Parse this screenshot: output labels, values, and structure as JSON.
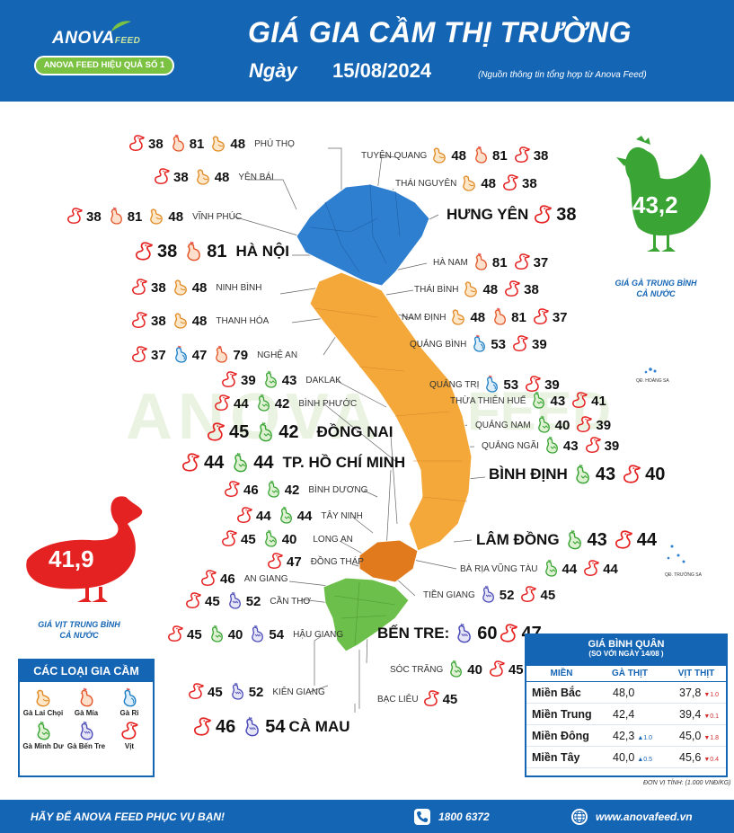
{
  "header": {
    "brand": "ANOVA",
    "brand_suffix": "FEED",
    "slogan": "ANOVA FEED HIỆU QUẢ SỐ 1",
    "title": "GIÁ GIA CẦM THỊ TRƯỜNG",
    "date_label": "Ngày",
    "date": "15/08/2024",
    "source": "(Nguồn thông tin tổng hợp từ Anova Feed)"
  },
  "colors": {
    "brand_blue": "#1565b5",
    "north": "#2f7fd1",
    "central": "#f5a83a",
    "southeast": "#e07a1c",
    "mekong": "#6cbf4a",
    "chicken_avg": "#3aa535",
    "duck_avg": "#e52222"
  },
  "provinces": [
    {
      "name": "PHÚ THỌ",
      "prices": [
        {
          "type": "vit",
          "value": "38"
        },
        {
          "type": "ga-mia",
          "value": "81"
        },
        {
          "type": "ga-lai-choi",
          "value": "48"
        }
      ]
    },
    {
      "name": "YÊN BÁI",
      "prices": [
        {
          "type": "vit",
          "value": "38"
        },
        {
          "type": "ga-lai-choi",
          "value": "48"
        }
      ]
    },
    {
      "name": "VĨNH PHÚC",
      "prices": [
        {
          "type": "vit",
          "value": "38"
        },
        {
          "type": "ga-mia",
          "value": "81"
        },
        {
          "type": "ga-lai-choi",
          "value": "48"
        }
      ]
    },
    {
      "name": "HÀ NỘI",
      "prices": [
        {
          "type": "vit",
          "value": "38"
        },
        {
          "type": "ga-mia",
          "value": "81"
        }
      ]
    },
    {
      "name": "NINH BÌNH",
      "prices": [
        {
          "type": "vit",
          "value": "38"
        },
        {
          "type": "ga-lai-choi",
          "value": "48"
        }
      ]
    },
    {
      "name": "THANH HÓA",
      "prices": [
        {
          "type": "vit",
          "value": "38"
        },
        {
          "type": "ga-lai-choi",
          "value": "48"
        }
      ]
    },
    {
      "name": "NGHỆ AN",
      "prices": [
        {
          "type": "vit",
          "value": "37"
        },
        {
          "type": "ga-ri",
          "value": "47"
        },
        {
          "type": "ga-mia",
          "value": "79"
        }
      ]
    },
    {
      "name": "DAKLAK",
      "prices": [
        {
          "type": "vit",
          "value": "39"
        },
        {
          "type": "ga-minh-du",
          "value": "43"
        }
      ]
    },
    {
      "name": "BÌNH PHƯỚC",
      "prices": [
        {
          "type": "vit",
          "value": "44"
        },
        {
          "type": "ga-minh-du",
          "value": "42"
        }
      ]
    },
    {
      "name": "ĐỒNG NAI",
      "prices": [
        {
          "type": "vit",
          "value": "45"
        },
        {
          "type": "ga-minh-du",
          "value": "42"
        }
      ]
    },
    {
      "name": "TP. HỒ CHÍ MINH",
      "prices": [
        {
          "type": "vit",
          "value": "44"
        },
        {
          "type": "ga-minh-du",
          "value": "44"
        }
      ]
    },
    {
      "name": "BÌNH DƯƠNG",
      "prices": [
        {
          "type": "vit",
          "value": "46"
        },
        {
          "type": "ga-minh-du",
          "value": "42"
        }
      ]
    },
    {
      "name": "TÂY NINH",
      "prices": [
        {
          "type": "vit",
          "value": "44"
        },
        {
          "type": "ga-minh-du",
          "value": "44"
        }
      ]
    },
    {
      "name": "LONG AN",
      "prices": [
        {
          "type": "vit",
          "value": "45"
        },
        {
          "type": "ga-minh-du",
          "value": "40"
        }
      ]
    },
    {
      "name": "ĐỒNG THÁP",
      "prices": [
        {
          "type": "vit",
          "value": "47"
        }
      ]
    },
    {
      "name": "AN GIANG",
      "prices": [
        {
          "type": "vit",
          "value": "46"
        }
      ]
    },
    {
      "name": "CẦN THƠ",
      "prices": [
        {
          "type": "vit",
          "value": "45"
        },
        {
          "type": "ga-ben-tre",
          "value": "52"
        }
      ]
    },
    {
      "name": "HẬU GIANG",
      "prices": [
        {
          "type": "vit",
          "value": "45"
        },
        {
          "type": "ga-minh-du",
          "value": "40"
        },
        {
          "type": "ga-ben-tre",
          "value": "54"
        }
      ]
    },
    {
      "name": "KIÊN GIANG",
      "prices": [
        {
          "type": "vit",
          "value": "45"
        },
        {
          "type": "ga-ben-tre",
          "value": "52"
        }
      ]
    },
    {
      "name": "CÀ MAU",
      "prices": [
        {
          "type": "vit",
          "value": "46"
        },
        {
          "type": "ga-ben-tre",
          "value": "54"
        }
      ]
    },
    {
      "name": "TUYÊN QUANG",
      "prices": [
        {
          "type": "ga-lai-choi",
          "value": "48"
        },
        {
          "type": "ga-mia",
          "value": "81"
        },
        {
          "type": "vit",
          "value": "38"
        }
      ]
    },
    {
      "name": "THÁI NGUYÊN",
      "prices": [
        {
          "type": "ga-lai-choi",
          "value": "48"
        },
        {
          "type": "vit",
          "value": "38"
        }
      ]
    },
    {
      "name": "HƯNG YÊN",
      "prices": [
        {
          "type": "vit",
          "value": "38"
        }
      ]
    },
    {
      "name": "HÀ NAM",
      "prices": [
        {
          "type": "ga-mia",
          "value": "81"
        },
        {
          "type": "vit",
          "value": "37"
        }
      ]
    },
    {
      "name": "THÁI BÌNH",
      "prices": [
        {
          "type": "ga-lai-choi",
          "value": "48"
        },
        {
          "type": "vit",
          "value": "38"
        }
      ]
    },
    {
      "name": "NAM ĐỊNH",
      "prices": [
        {
          "type": "ga-lai-choi",
          "value": "48"
        },
        {
          "type": "ga-mia",
          "value": "81"
        },
        {
          "type": "vit",
          "value": "37"
        }
      ]
    },
    {
      "name": "QUẢNG BÌNH",
      "prices": [
        {
          "type": "ga-ri",
          "value": "53"
        },
        {
          "type": "vit",
          "value": "39"
        }
      ]
    },
    {
      "name": "QUẢNG TRỊ",
      "prices": [
        {
          "type": "ga-ri",
          "value": "53"
        },
        {
          "type": "vit",
          "value": "39"
        }
      ]
    },
    {
      "name": "THỪA THIÊN HUẾ",
      "prices": [
        {
          "type": "ga-minh-du",
          "value": "43"
        },
        {
          "type": "vit",
          "value": "41"
        }
      ]
    },
    {
      "name": "QUẢNG NAM",
      "prices": [
        {
          "type": "ga-minh-du",
          "value": "40"
        },
        {
          "type": "vit",
          "value": "39"
        }
      ]
    },
    {
      "name": "QUẢNG NGÃI",
      "prices": [
        {
          "type": "ga-minh-du",
          "value": "43"
        },
        {
          "type": "vit",
          "value": "39"
        }
      ]
    },
    {
      "name": "BÌNH ĐỊNH",
      "prices": [
        {
          "type": "ga-minh-du",
          "value": "43"
        },
        {
          "type": "vit",
          "value": "40"
        }
      ]
    },
    {
      "name": "LÂM ĐỒNG",
      "prices": [
        {
          "type": "ga-minh-du",
          "value": "43"
        },
        {
          "type": "vit",
          "value": "44"
        }
      ]
    },
    {
      "name": "BÀ RỊA VŨNG TÀU",
      "prices": [
        {
          "type": "ga-minh-du",
          "value": "44"
        },
        {
          "type": "vit",
          "value": "44"
        }
      ]
    },
    {
      "name": "TIỀN GIANG",
      "prices": [
        {
          "type": "ga-ben-tre",
          "value": "52"
        },
        {
          "type": "vit",
          "value": "45"
        }
      ]
    },
    {
      "name": "BẾN TRE:",
      "prices": [
        {
          "type": "ga-ben-tre",
          "value": "60"
        },
        {
          "type": "vit",
          "value": "47"
        }
      ]
    },
    {
      "name": "SÓC TRĂNG",
      "prices": [
        {
          "type": "ga-minh-du",
          "value": "40"
        },
        {
          "type": "vit",
          "value": "45"
        }
      ]
    },
    {
      "name": "BẠC LIÊU",
      "prices": [
        {
          "type": "vit",
          "value": "45"
        }
      ]
    }
  ],
  "islands": [
    "QĐ. HOÀNG SA",
    "QĐ. TRƯỜNG SA"
  ],
  "averages": {
    "chicken": {
      "value": "43,2",
      "caption_1": "GIÁ GÀ TRUNG BÌNH",
      "caption_2": "CẢ NƯỚC"
    },
    "duck": {
      "value": "41,9",
      "caption_1": "GIÁ VỊT TRUNG BÌNH",
      "caption_2": "CẢ NƯỚC"
    }
  },
  "legend": {
    "title": "CÁC LOẠI GIA CẦM",
    "items": [
      {
        "type": "ga-lai-choi",
        "label": "Gà Lai Chọi"
      },
      {
        "type": "ga-mia",
        "label": "Gà Mía"
      },
      {
        "type": "ga-ri",
        "label": "Gà Ri"
      },
      {
        "type": "ga-minh-du",
        "label": "Gà Minh Dư"
      },
      {
        "type": "ga-ben-tre",
        "label": "Gà Bến Tre"
      },
      {
        "type": "vit",
        "label": "Vịt"
      }
    ]
  },
  "avg_table": {
    "title": "GIÁ BÌNH QUÂN",
    "subtitle": "(SO VỚI NGÀY  14/08  )",
    "col_region": "MIỀN",
    "col_chicken": "GÀ THỊT",
    "col_duck": "VỊT THỊT",
    "rows": [
      {
        "region": "Miền Bắc",
        "chicken": "48,0",
        "chicken_change": "",
        "chicken_dir": "",
        "duck": "37,8",
        "duck_change": "1.0",
        "duck_dir": "down"
      },
      {
        "region": "Miền Trung",
        "chicken": "42,4",
        "chicken_change": "",
        "chicken_dir": "",
        "duck": "39,4",
        "duck_change": "0.1",
        "duck_dir": "down"
      },
      {
        "region": "Miền Đông",
        "chicken": "42,3",
        "chicken_change": "1.0",
        "chicken_dir": "up",
        "duck": "45,0",
        "duck_change": "1.8",
        "duck_dir": "down"
      },
      {
        "region": "Miền Tây",
        "chicken": "40,0",
        "chicken_change": "0.5",
        "chicken_dir": "up",
        "duck": "45,6",
        "duck_change": "0.4",
        "duck_dir": "down"
      }
    ],
    "unit": "ĐƠN VỊ TÍNH: (1.000 VNĐ/KG)"
  },
  "footer": {
    "slogan": "HÃY ĐỂ ANOVA FEED PHỤC VỤ BẠN!",
    "phone": "1800 6372",
    "website": "www.anovafeed.vn"
  }
}
